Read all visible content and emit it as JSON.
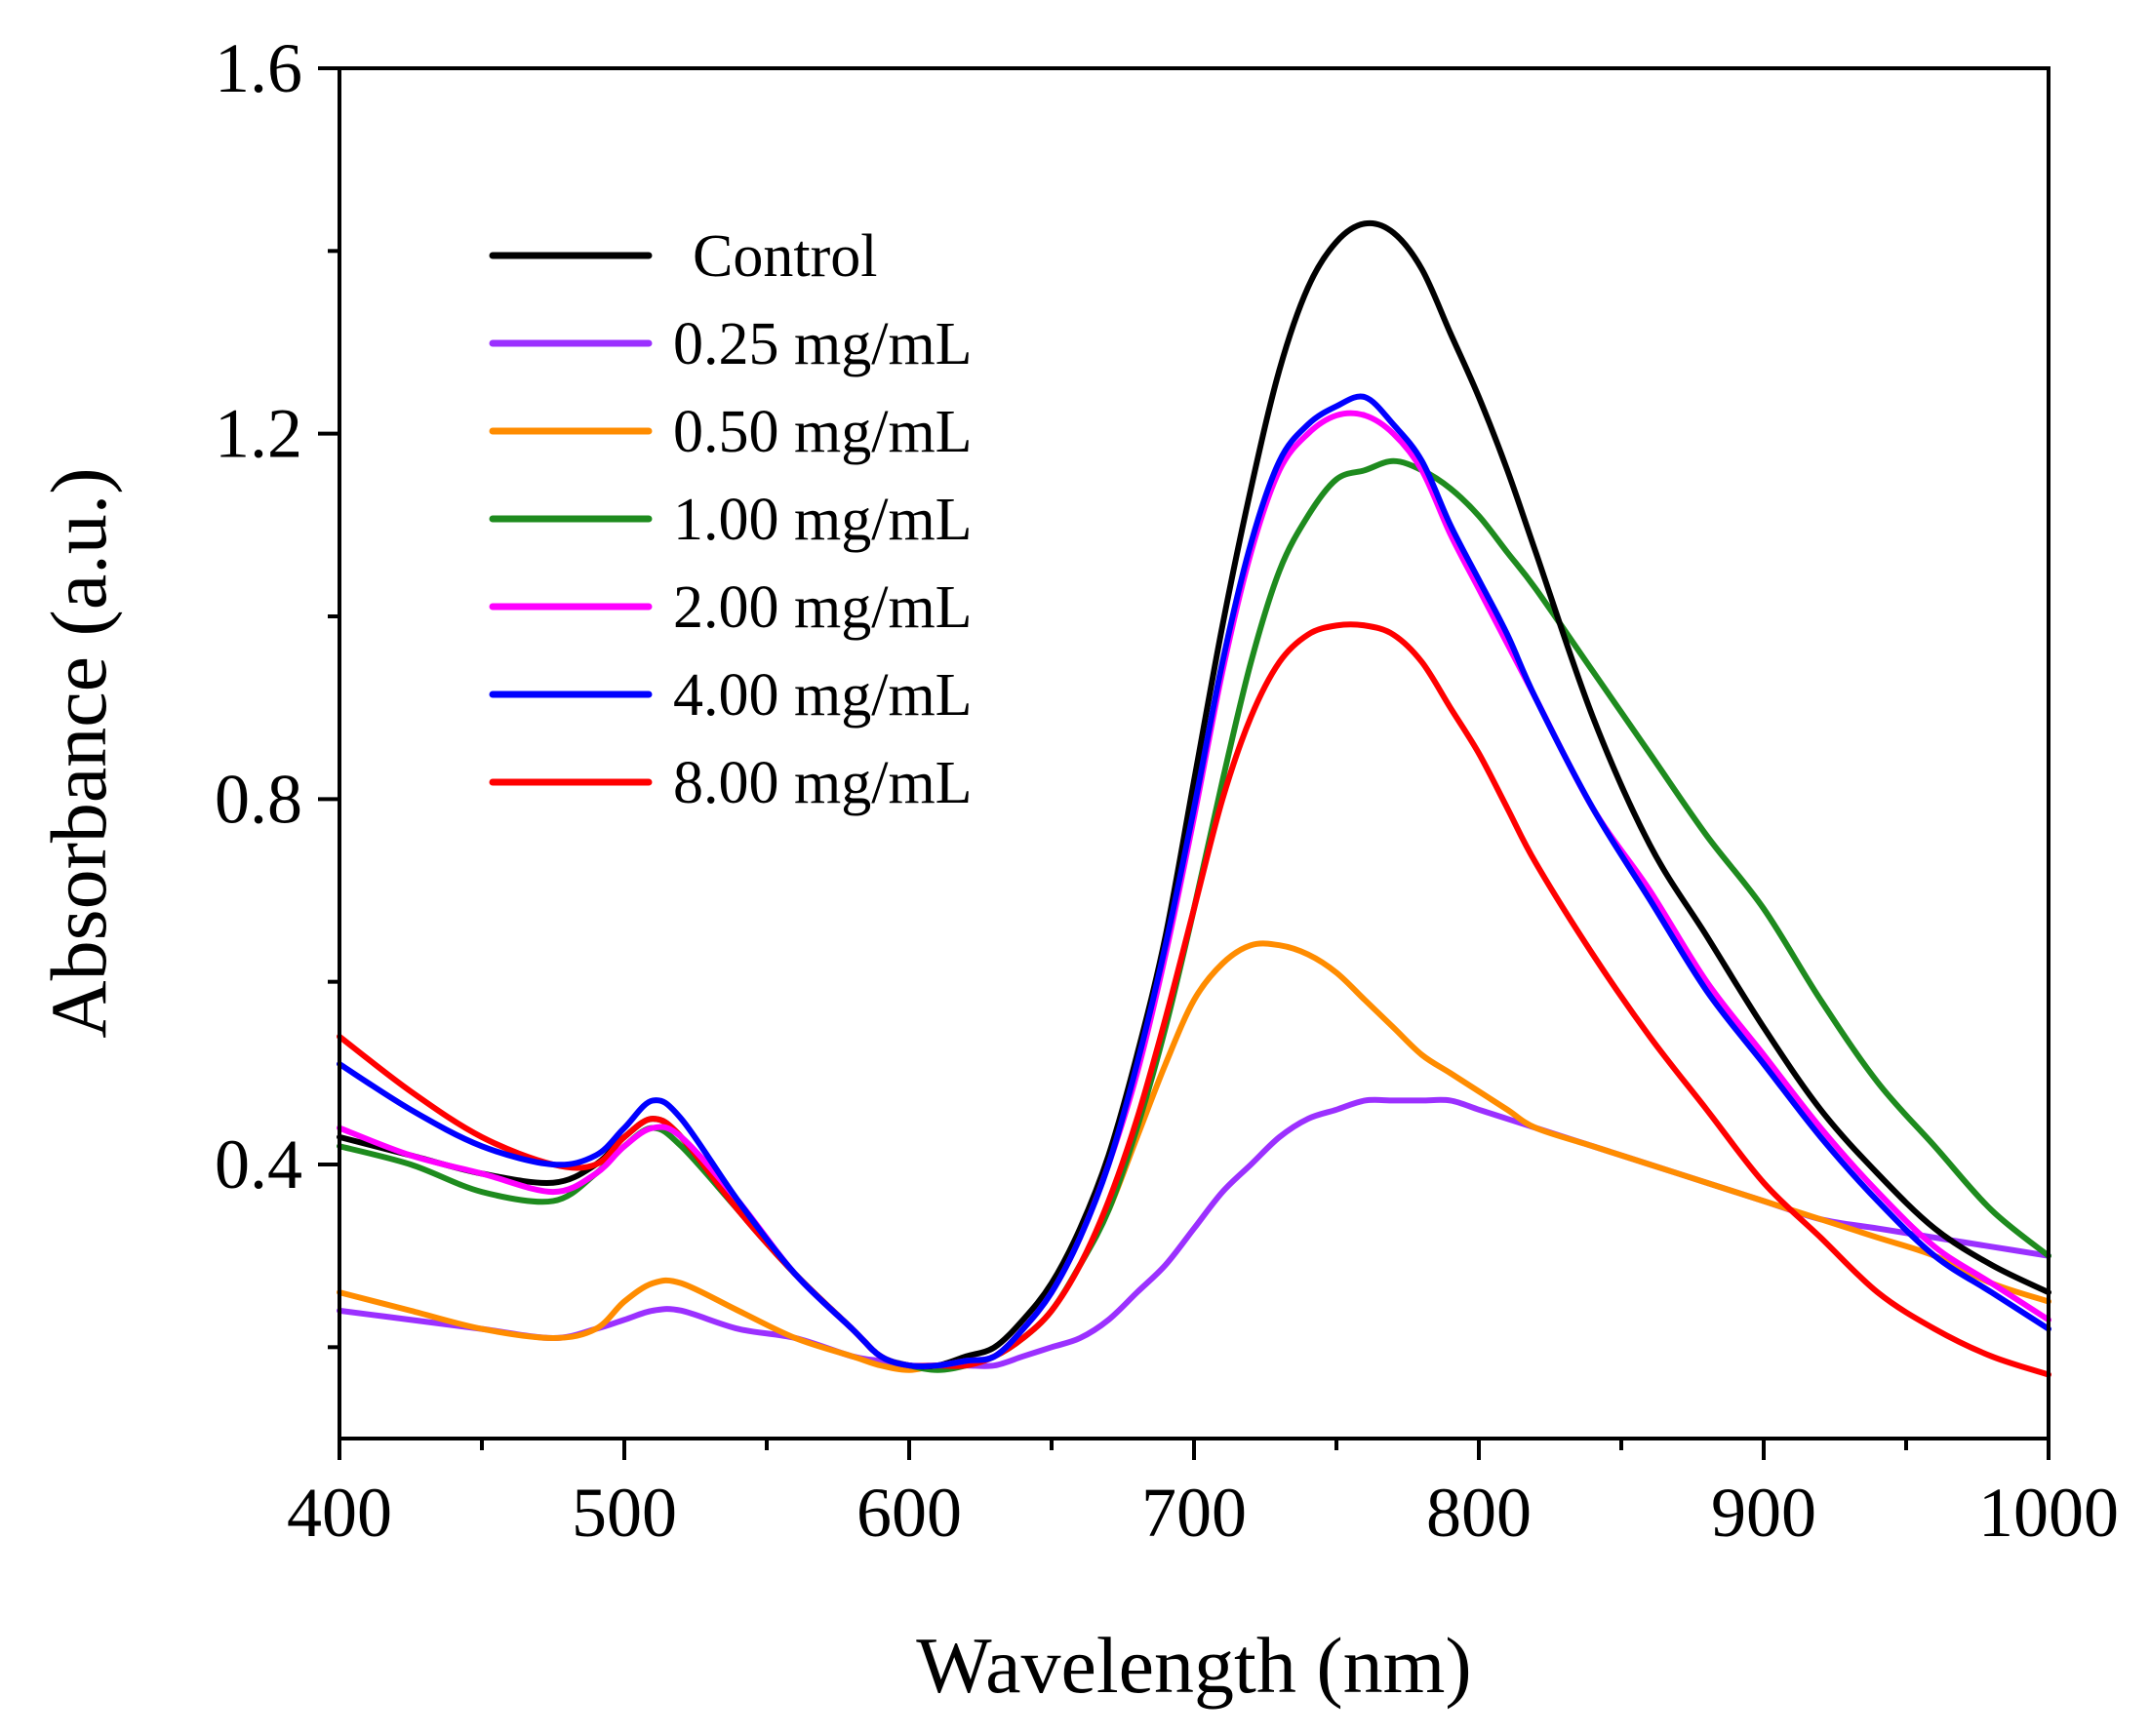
{
  "chart_data": {
    "type": "line",
    "title": "",
    "xlabel": "Wavelength (nm)",
    "ylabel": "Absorbance (a.u.)",
    "xlim": [
      400,
      1000
    ],
    "ylim": [
      0.1,
      1.6
    ],
    "xticks": [
      400,
      500,
      600,
      700,
      800,
      900,
      1000
    ],
    "xtick_labels": [
      "400",
      "500",
      "600",
      "700",
      "800",
      "900",
      "1000"
    ],
    "yticks": [
      0.4,
      0.8,
      1.2,
      1.6
    ],
    "ytick_labels": [
      "0.4",
      "0.8",
      "1.2",
      "1.6"
    ],
    "grid": false,
    "legend_position": "top-left",
    "x": [
      400,
      425,
      450,
      475,
      490,
      500,
      510,
      520,
      540,
      560,
      580,
      590,
      600,
      610,
      620,
      630,
      640,
      650,
      660,
      670,
      680,
      690,
      700,
      710,
      720,
      730,
      740,
      750,
      760,
      770,
      780,
      790,
      800,
      810,
      820,
      840,
      860,
      880,
      900,
      920,
      940,
      960,
      980,
      1000
    ],
    "series": [
      {
        "name": "Control",
        "color": "#000000",
        "values": [
          0.43,
          0.41,
          0.39,
          0.38,
          0.4,
          0.43,
          0.45,
          0.43,
          0.35,
          0.28,
          0.22,
          0.19,
          0.18,
          0.18,
          0.19,
          0.2,
          0.23,
          0.27,
          0.33,
          0.41,
          0.52,
          0.65,
          0.82,
          0.99,
          1.14,
          1.27,
          1.36,
          1.41,
          1.43,
          1.42,
          1.38,
          1.31,
          1.24,
          1.16,
          1.07,
          0.89,
          0.75,
          0.65,
          0.55,
          0.46,
          0.39,
          0.33,
          0.29,
          0.26
        ]
      },
      {
        "name": "0.25 mg/mL",
        "color": "#9b30ff",
        "values": [
          0.24,
          0.23,
          0.22,
          0.21,
          0.22,
          0.23,
          0.24,
          0.24,
          0.22,
          0.21,
          0.19,
          0.185,
          0.18,
          0.18,
          0.18,
          0.18,
          0.19,
          0.2,
          0.21,
          0.23,
          0.26,
          0.29,
          0.33,
          0.37,
          0.4,
          0.43,
          0.45,
          0.46,
          0.47,
          0.47,
          0.47,
          0.47,
          0.46,
          0.45,
          0.44,
          0.42,
          0.4,
          0.38,
          0.36,
          0.34,
          0.33,
          0.32,
          0.31,
          0.3
        ]
      },
      {
        "name": "0.50 mg/mL",
        "color": "#ff8c00",
        "values": [
          0.26,
          0.24,
          0.22,
          0.21,
          0.22,
          0.25,
          0.27,
          0.27,
          0.24,
          0.21,
          0.19,
          0.18,
          0.175,
          0.18,
          0.18,
          0.19,
          0.21,
          0.24,
          0.29,
          0.35,
          0.43,
          0.51,
          0.58,
          0.62,
          0.64,
          0.64,
          0.63,
          0.61,
          0.58,
          0.55,
          0.52,
          0.5,
          0.48,
          0.46,
          0.44,
          0.42,
          0.4,
          0.38,
          0.36,
          0.34,
          0.32,
          0.3,
          0.27,
          0.25
        ]
      },
      {
        "name": "1.00 mg/mL",
        "color": "#1e8b1e",
        "values": [
          0.42,
          0.4,
          0.37,
          0.36,
          0.39,
          0.42,
          0.44,
          0.42,
          0.35,
          0.28,
          0.22,
          0.19,
          0.18,
          0.175,
          0.18,
          0.19,
          0.21,
          0.24,
          0.29,
          0.35,
          0.44,
          0.55,
          0.68,
          0.82,
          0.95,
          1.05,
          1.11,
          1.15,
          1.16,
          1.17,
          1.16,
          1.14,
          1.11,
          1.07,
          1.03,
          0.94,
          0.85,
          0.76,
          0.68,
          0.58,
          0.49,
          0.42,
          0.35,
          0.3
        ]
      },
      {
        "name": "2.00 mg/mL",
        "color": "#ff00ff",
        "values": [
          0.44,
          0.41,
          0.39,
          0.37,
          0.39,
          0.42,
          0.44,
          0.43,
          0.36,
          0.28,
          0.22,
          0.19,
          0.18,
          0.18,
          0.185,
          0.19,
          0.22,
          0.26,
          0.32,
          0.4,
          0.5,
          0.63,
          0.78,
          0.94,
          1.07,
          1.16,
          1.2,
          1.22,
          1.22,
          1.2,
          1.16,
          1.09,
          1.03,
          0.97,
          0.91,
          0.79,
          0.7,
          0.6,
          0.52,
          0.44,
          0.37,
          0.31,
          0.27,
          0.23
        ]
      },
      {
        "name": "4.00 mg/mL",
        "color": "#0000ff",
        "values": [
          0.51,
          0.46,
          0.42,
          0.4,
          0.41,
          0.44,
          0.47,
          0.45,
          0.36,
          0.28,
          0.22,
          0.19,
          0.18,
          0.18,
          0.185,
          0.19,
          0.22,
          0.26,
          0.32,
          0.4,
          0.51,
          0.64,
          0.79,
          0.95,
          1.08,
          1.17,
          1.21,
          1.23,
          1.24,
          1.21,
          1.17,
          1.1,
          1.04,
          0.98,
          0.91,
          0.79,
          0.69,
          0.59,
          0.51,
          0.43,
          0.36,
          0.3,
          0.26,
          0.22
        ]
      },
      {
        "name": "8.00 mg/mL",
        "color": "#ff0000",
        "values": [
          0.54,
          0.48,
          0.43,
          0.4,
          0.4,
          0.43,
          0.45,
          0.43,
          0.35,
          0.28,
          0.22,
          0.19,
          0.18,
          0.18,
          0.18,
          0.19,
          0.21,
          0.24,
          0.29,
          0.36,
          0.45,
          0.56,
          0.68,
          0.8,
          0.89,
          0.95,
          0.98,
          0.99,
          0.99,
          0.98,
          0.95,
          0.9,
          0.85,
          0.79,
          0.73,
          0.63,
          0.54,
          0.46,
          0.38,
          0.32,
          0.26,
          0.22,
          0.19,
          0.17
        ]
      }
    ]
  }
}
